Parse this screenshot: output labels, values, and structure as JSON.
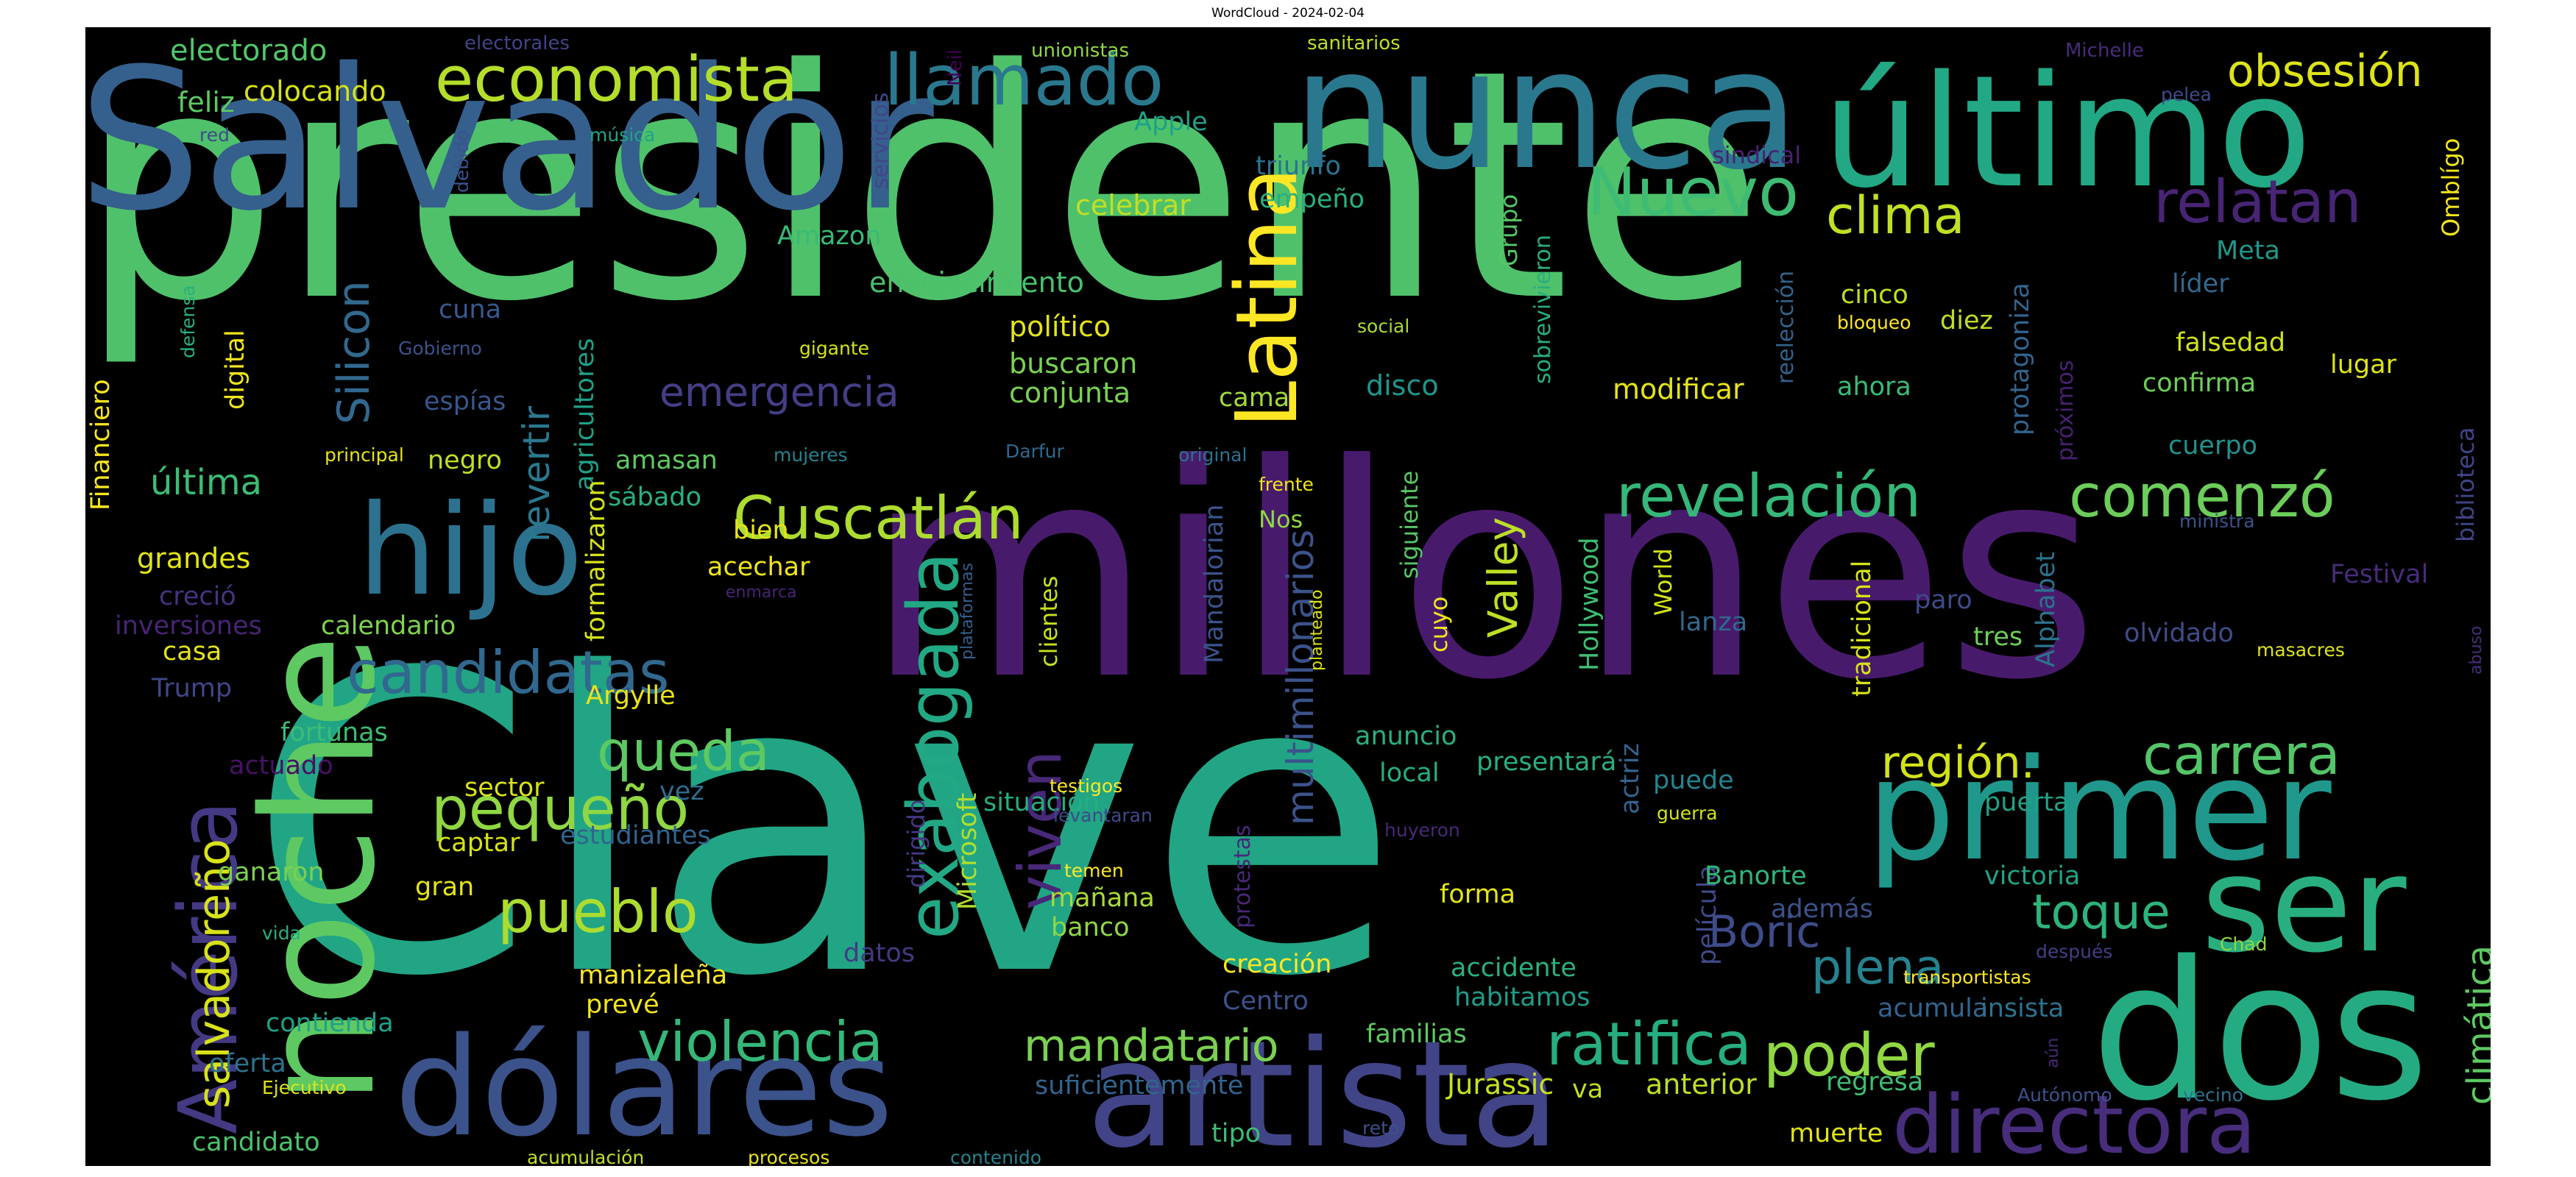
{
  "chart_data": {
    "type": "wordcloud",
    "title": "WordCloud - 2024-02-04",
    "background": "#000000",
    "colormap": "viridis",
    "words": [
      {
        "text": "presidente",
        "weight": 1.0,
        "color": "#4fc16b"
      },
      {
        "text": "Clave",
        "weight": 0.96,
        "color": "#21a585"
      },
      {
        "text": "millones",
        "weight": 0.72,
        "color": "#481a6c"
      },
      {
        "text": "Salvador",
        "weight": 0.62,
        "color": "#355f8d"
      },
      {
        "text": "noche",
        "weight": 0.56,
        "color": "#5ec962"
      },
      {
        "text": "nunca",
        "weight": 0.5,
        "color": "#2a788e"
      },
      {
        "text": "último",
        "weight": 0.48,
        "color": "#22a884"
      },
      {
        "text": "dólares",
        "weight": 0.46,
        "color": "#3b528b"
      },
      {
        "text": "artista",
        "weight": 0.46,
        "color": "#414487"
      },
      {
        "text": "dos",
        "weight": 0.45,
        "color": "#25ab82"
      },
      {
        "text": "primer",
        "weight": 0.4,
        "color": "#1f988b"
      },
      {
        "text": "ser",
        "weight": 0.36,
        "color": "#29af7f"
      },
      {
        "text": "hijo",
        "weight": 0.34,
        "color": "#2c728e"
      },
      {
        "text": "directora",
        "weight": 0.28,
        "color": "#472d7b"
      },
      {
        "text": "América",
        "weight": 0.26,
        "color": "#443983"
      },
      {
        "text": "Latina",
        "weight": 0.24,
        "color": "#fde725"
      },
      {
        "text": "exabogada",
        "weight": 0.22,
        "color": "#22a884"
      },
      {
        "text": "economista",
        "weight": 0.2,
        "color": "#b5de2b"
      },
      {
        "text": "llamado",
        "weight": 0.2,
        "color": "#2a788e"
      },
      {
        "text": "Cuscatlán",
        "weight": 0.2,
        "color": "#addc30"
      },
      {
        "text": "revelación",
        "weight": 0.19,
        "color": "#35b779"
      },
      {
        "text": "comenzó",
        "weight": 0.19,
        "color": "#6ccd5a"
      },
      {
        "text": "candidatas",
        "weight": 0.19,
        "color": "#31688e"
      },
      {
        "text": "pequeño",
        "weight": 0.19,
        "color": "#90d743"
      },
      {
        "text": "pueblo",
        "weight": 0.19,
        "color": "#addc30"
      },
      {
        "text": "violencia",
        "weight": 0.19,
        "color": "#35b779"
      },
      {
        "text": "relatan",
        "weight": 0.18,
        "color": "#482475"
      },
      {
        "text": "Nuevo",
        "weight": 0.18,
        "color": "#3fbc73"
      },
      {
        "text": "carrera",
        "weight": 0.17,
        "color": "#54c568"
      },
      {
        "text": "queda",
        "weight": 0.17,
        "color": "#5ec962"
      },
      {
        "text": "mandatario",
        "weight": 0.17,
        "color": "#7ad151"
      },
      {
        "text": "poder",
        "weight": 0.16,
        "color": "#90d743"
      },
      {
        "text": "ratifica",
        "weight": 0.16,
        "color": "#26ad81"
      },
      {
        "text": "viven",
        "weight": 0.16,
        "color": "#482878"
      },
      {
        "text": "clima",
        "weight": 0.15,
        "color": "#c2df23"
      },
      {
        "text": "plena",
        "weight": 0.15,
        "color": "#26828e"
      },
      {
        "text": "toque",
        "weight": 0.15,
        "color": "#2eb37c"
      },
      {
        "text": "región.",
        "weight": 0.15,
        "color": "#d2e21b"
      },
      {
        "text": "salvadoreño",
        "weight": 0.15,
        "color": "#d8e219"
      },
      {
        "text": "Boric",
        "weight": 0.14,
        "color": "#3e4c8a"
      },
      {
        "text": "Silicon",
        "weight": 0.14,
        "color": "#31688e"
      },
      {
        "text": "obsesión",
        "weight": 0.13,
        "color": "#dde318"
      },
      {
        "text": "Valley",
        "weight": 0.13,
        "color": "#bddf26"
      },
      {
        "text": "emergencia",
        "weight": 0.12,
        "color": "#433e85"
      },
      {
        "text": "multimillonarios",
        "weight": 0.11,
        "color": "#3b528b"
      },
      {
        "text": "revertir",
        "weight": 0.11,
        "color": "#2a788e"
      },
      {
        "text": "climática",
        "weight": 0.11,
        "color": "#5ec962"
      },
      {
        "text": "última",
        "weight": 0.1,
        "color": "#3dbc74"
      },
      {
        "text": "agricultores",
        "weight": 0.08,
        "color": "#1fa188"
      },
      {
        "text": "Mandalorian",
        "weight": 0.08,
        "color": "#3b528b"
      },
      {
        "text": "Hollywood",
        "weight": 0.08,
        "color": "#3fbc73"
      },
      {
        "text": "protagoniza",
        "weight": 0.08,
        "color": "#32648e"
      },
      {
        "text": "Financiero",
        "weight": 0.08,
        "color": "#f8e621"
      },
      {
        "text": "digital",
        "weight": 0.08,
        "color": "#efe51c"
      },
      {
        "text": "película",
        "weight": 0.07,
        "color": "#3e4a89"
      },
      {
        "text": "formalizaron",
        "weight": 0.07,
        "color": "#d5e21a"
      },
      {
        "text": "presentará",
        "weight": 0.08,
        "color": "#29af7f"
      },
      {
        "text": "Microsoft",
        "weight": 0.08,
        "color": "#b2dd2d"
      },
      {
        "text": "tradicional",
        "weight": 0.08,
        "color": "#d8e219"
      },
      {
        "text": "actriz",
        "weight": 0.08,
        "color": "#33638d"
      },
      {
        "text": "Jurassic",
        "weight": 0.08,
        "color": "#c8e020"
      },
      {
        "text": "anterior",
        "weight": 0.08,
        "color": "#bddf26"
      },
      {
        "text": "suficientemente",
        "weight": 0.08,
        "color": "#32648e"
      },
      {
        "text": "manizaleña",
        "weight": 0.08,
        "color": "#fde725"
      },
      {
        "text": "estudiantes",
        "weight": 0.08,
        "color": "#32648e"
      },
      {
        "text": "fortunas",
        "weight": 0.08,
        "color": "#3dbc74"
      },
      {
        "text": "calendario",
        "weight": 0.08,
        "color": "#7fd34e"
      },
      {
        "text": "inversiones",
        "weight": 0.07,
        "color": "#482475"
      },
      {
        "text": "envejecimiento",
        "weight": 0.08,
        "color": "#4ac16d"
      },
      {
        "text": "modificar",
        "weight": 0.08,
        "color": "#e5e419"
      },
      {
        "text": "cuerpo",
        "weight": 0.07,
        "color": "#21918c"
      },
      {
        "text": "confirma",
        "weight": 0.07,
        "color": "#6ece58"
      },
      {
        "text": "falsedad",
        "weight": 0.07,
        "color": "#d0e11c"
      },
      {
        "text": "Alphabet",
        "weight": 0.07,
        "color": "#2c728e"
      },
      {
        "text": "olvidado",
        "weight": 0.07,
        "color": "#3e4c8a"
      },
      {
        "text": "victoria",
        "weight": 0.07,
        "color": "#20a386"
      },
      {
        "text": "acumula",
        "weight": 0.07,
        "color": "#33638d"
      },
      {
        "text": "insista",
        "weight": 0.07,
        "color": "#2c728e"
      },
      {
        "text": "regresa",
        "weight": 0.07,
        "color": "#3dbc74"
      },
      {
        "text": "muerte",
        "weight": 0.07,
        "color": "#e2e418"
      },
      {
        "text": "electorado",
        "weight": 0.07,
        "color": "#52c569"
      },
      {
        "text": "colocando",
        "weight": 0.07,
        "color": "#d5e21a"
      },
      {
        "text": "feliz",
        "weight": 0.07,
        "color": "#5ec962"
      },
      {
        "text": "Apple",
        "weight": 0.07,
        "color": "#1fa188"
      },
      {
        "text": "celebrar",
        "weight": 0.07,
        "color": "#c2df23"
      },
      {
        "text": "triunfo",
        "weight": 0.07,
        "color": "#2c728e"
      },
      {
        "text": "empeño",
        "weight": 0.07,
        "color": "#2ab07f"
      },
      {
        "text": "Amazon",
        "weight": 0.07,
        "color": "#3aba76"
      },
      {
        "text": "político",
        "weight": 0.07,
        "color": "#e5e419"
      },
      {
        "text": "buscaron",
        "weight": 0.07,
        "color": "#7ad151"
      },
      {
        "text": "conjunta",
        "weight": 0.07,
        "color": "#7ad151"
      },
      {
        "text": "cama",
        "weight": 0.07,
        "color": "#a0da39"
      },
      {
        "text": "disco",
        "weight": 0.07,
        "color": "#1f968b"
      },
      {
        "text": "cinco",
        "weight": 0.07,
        "color": "#c2df23"
      },
      {
        "text": "diez",
        "weight": 0.07,
        "color": "#bddf26"
      },
      {
        "text": "líder",
        "weight": 0.07,
        "color": "#31688e"
      },
      {
        "text": "Meta",
        "weight": 0.07,
        "color": "#1f978b"
      },
      {
        "text": "ahora",
        "weight": 0.07,
        "color": "#3aba76"
      },
      {
        "text": "lugar",
        "weight": 0.07,
        "color": "#dde318"
      },
      {
        "text": "cuna",
        "weight": 0.07,
        "color": "#38598c"
      },
      {
        "text": "espías",
        "weight": 0.07,
        "color": "#39568c"
      },
      {
        "text": "amasan",
        "weight": 0.07,
        "color": "#5ec962"
      },
      {
        "text": "negro",
        "weight": 0.07,
        "color": "#bddf26"
      },
      {
        "text": "sábado",
        "weight": 0.07,
        "color": "#2ab07f"
      },
      {
        "text": "bien",
        "weight": 0.07,
        "color": "#e5e419"
      },
      {
        "text": "acechar",
        "weight": 0.07,
        "color": "#f1e51d"
      },
      {
        "text": "grandes",
        "weight": 0.07,
        "color": "#e2e418"
      },
      {
        "text": "creció",
        "weight": 0.07,
        "color": "#46337f"
      },
      {
        "text": "casa",
        "weight": 0.07,
        "color": "#e5e419"
      },
      {
        "text": "Trump",
        "weight": 0.07,
        "color": "#404688"
      },
      {
        "text": "actuado",
        "weight": 0.07,
        "color": "#471164"
      },
      {
        "text": "Argylle",
        "weight": 0.07,
        "color": "#e8e419"
      },
      {
        "text": "sector",
        "weight": 0.07,
        "color": "#d8e219"
      },
      {
        "text": "vez",
        "weight": 0.07,
        "color": "#2f6c8e"
      },
      {
        "text": "captar",
        "weight": 0.07,
        "color": "#d5e21a"
      },
      {
        "text": "ganaron",
        "weight": 0.07,
        "color": "#7ad151"
      },
      {
        "text": "gran",
        "weight": 0.07,
        "color": "#e5e419"
      },
      {
        "text": "datos",
        "weight": 0.07,
        "color": "#443983"
      },
      {
        "text": "prevé",
        "weight": 0.07,
        "color": "#f4e61e"
      },
      {
        "text": "contienda",
        "weight": 0.07,
        "color": "#1fa088"
      },
      {
        "text": "oferta",
        "weight": 0.07,
        "color": "#2c738e"
      },
      {
        "text": "candidato",
        "weight": 0.07,
        "color": "#4cc26c"
      },
      {
        "text": "situación",
        "weight": 0.07,
        "color": "#26ad81"
      },
      {
        "text": "mañana",
        "weight": 0.07,
        "color": "#a8db34"
      },
      {
        "text": "banco",
        "weight": 0.07,
        "color": "#90d743"
      },
      {
        "text": "creación",
        "weight": 0.07,
        "color": "#fde725"
      },
      {
        "text": "Centro",
        "weight": 0.07,
        "color": "#3b528b"
      },
      {
        "text": "forma",
        "weight": 0.07,
        "color": "#e5e419"
      },
      {
        "text": "accidente",
        "weight": 0.07,
        "color": "#2ab07f"
      },
      {
        "text": "habitamos",
        "weight": 0.07,
        "color": "#1e9c89"
      },
      {
        "text": "familias",
        "weight": 0.07,
        "color": "#5ec962"
      },
      {
        "text": "anuncio",
        "weight": 0.07,
        "color": "#2ab07f"
      },
      {
        "text": "local",
        "weight": 0.07,
        "color": "#26ad81"
      },
      {
        "text": "Banorte",
        "weight": 0.07,
        "color": "#31b57b"
      },
      {
        "text": "puerta",
        "weight": 0.07,
        "color": "#1fa287"
      },
      {
        "text": "puede",
        "weight": 0.07,
        "color": "#25848e"
      },
      {
        "text": "tres",
        "weight": 0.07,
        "color": "#6ece58"
      },
      {
        "text": "paro",
        "weight": 0.07,
        "color": "#3e4a89"
      },
      {
        "text": "lanza",
        "weight": 0.07,
        "color": "#31688e"
      },
      {
        "text": "además",
        "weight": 0.07,
        "color": "#3b528b"
      },
      {
        "text": "tipo",
        "weight": 0.07,
        "color": "#3dbc74"
      },
      {
        "text": "va",
        "weight": 0.07,
        "color": "#bddf26"
      },
      {
        "text": "Festival",
        "weight": 0.07,
        "color": "#472c7a"
      },
      {
        "text": "Omblígo",
        "weight": 0.06,
        "color": "#f1e51d"
      },
      {
        "text": "biblioteca",
        "weight": 0.06,
        "color": "#414487"
      },
      {
        "text": "cuyo",
        "weight": 0.06,
        "color": "#f1e51d"
      },
      {
        "text": "siguiente",
        "weight": 0.06,
        "color": "#56c667"
      },
      {
        "text": "Nos",
        "weight": 0.06,
        "color": "#8fd744"
      },
      {
        "text": "World",
        "weight": 0.06,
        "color": "#d2e21b"
      },
      {
        "text": "clientes",
        "weight": 0.06,
        "color": "#c8e020"
      },
      {
        "text": "dirigido",
        "weight": 0.06,
        "color": "#443a83"
      },
      {
        "text": "protestas",
        "weight": 0.06,
        "color": "#482878"
      },
      {
        "text": "sobrevivieron",
        "weight": 0.06,
        "color": "#29af7f"
      },
      {
        "text": "Grupo",
        "weight": 0.06,
        "color": "#56c667"
      },
      {
        "text": "reelección",
        "weight": 0.06,
        "color": "#33638d"
      },
      {
        "text": "próximos",
        "weight": 0.06,
        "color": "#482173"
      },
      {
        "text": "sindical",
        "weight": 0.06,
        "color": "#482173"
      },
      {
        "text": "servicios",
        "weight": 0.06,
        "color": "#404688"
      },
      {
        "text": "Neil",
        "weight": 0.05,
        "color": "#440154"
      },
      {
        "text": "unionistas",
        "weight": 0.05,
        "color": "#8fd744"
      },
      {
        "text": "sanitarios",
        "weight": 0.05,
        "color": "#bddf26"
      },
      {
        "text": "electorales",
        "weight": 0.05,
        "color": "#414487"
      },
      {
        "text": "Michelle",
        "weight": 0.05,
        "color": "#472c7a"
      },
      {
        "text": "pelea",
        "weight": 0.05,
        "color": "#3e4a89"
      },
      {
        "text": "música",
        "weight": 0.05,
        "color": "#20a486"
      },
      {
        "text": "red",
        "weight": 0.05,
        "color": "#3e4a89"
      },
      {
        "text": "debido",
        "weight": 0.05,
        "color": "#3b528b"
      },
      {
        "text": "defensa",
        "weight": 0.05,
        "color": "#2ab07f"
      },
      {
        "text": "Gobierno",
        "weight": 0.05,
        "color": "#3b528b"
      },
      {
        "text": "gigante",
        "weight": 0.05,
        "color": "#d2e21b"
      },
      {
        "text": "social",
        "weight": 0.05,
        "color": "#a8db34"
      },
      {
        "text": "bloqueo",
        "weight": 0.05,
        "color": "#fde725"
      },
      {
        "text": "principal",
        "weight": 0.05,
        "color": "#e5e419"
      },
      {
        "text": "mujeres",
        "weight": 0.05,
        "color": "#26828e"
      },
      {
        "text": "Darfur",
        "weight": 0.05,
        "color": "#31688e"
      },
      {
        "text": "original",
        "weight": 0.05,
        "color": "#2c728e"
      },
      {
        "text": "frente",
        "weight": 0.05,
        "color": "#f1e51d"
      },
      {
        "text": "ministra",
        "weight": 0.05,
        "color": "#3b528b"
      },
      {
        "text": "enmarca",
        "weight": 0.05,
        "color": "#482475"
      },
      {
        "text": "plataformas",
        "weight": 0.05,
        "color": "#355f8d"
      },
      {
        "text": "planteado",
        "weight": 0.05,
        "color": "#dde318"
      },
      {
        "text": "masacres",
        "weight": 0.05,
        "color": "#dde318"
      },
      {
        "text": "abuso",
        "weight": 0.05,
        "color": "#472d7b"
      },
      {
        "text": "testigos",
        "weight": 0.05,
        "color": "#fde725"
      },
      {
        "text": "levantaran",
        "weight": 0.05,
        "color": "#3e4a89"
      },
      {
        "text": "huyeron",
        "weight": 0.05,
        "color": "#482878"
      },
      {
        "text": "guerra",
        "weight": 0.05,
        "color": "#d2e21b"
      },
      {
        "text": "temen",
        "weight": 0.05,
        "color": "#fde725"
      },
      {
        "text": "vida",
        "weight": 0.05,
        "color": "#2ab07f"
      },
      {
        "text": "Chad",
        "weight": 0.05,
        "color": "#8fd744"
      },
      {
        "text": "después",
        "weight": 0.05,
        "color": "#433e85"
      },
      {
        "text": "transportistas",
        "weight": 0.05,
        "color": "#fde725"
      },
      {
        "text": "aún",
        "weight": 0.05,
        "color": "#482878"
      },
      {
        "text": "Autónomo",
        "weight": 0.05,
        "color": "#3b528b"
      },
      {
        "text": "vecino",
        "weight": 0.05,
        "color": "#2c728e"
      },
      {
        "text": "Ejecutivo",
        "weight": 0.05,
        "color": "#dde318"
      },
      {
        "text": "reto",
        "weight": 0.05,
        "color": "#3b528b"
      },
      {
        "text": "acumulación",
        "weight": 0.05,
        "color": "#c2df23"
      },
      {
        "text": "procesos",
        "weight": 0.05,
        "color": "#e5e419"
      },
      {
        "text": "contenido",
        "weight": 0.05,
        "color": "#26828e"
      }
    ]
  }
}
